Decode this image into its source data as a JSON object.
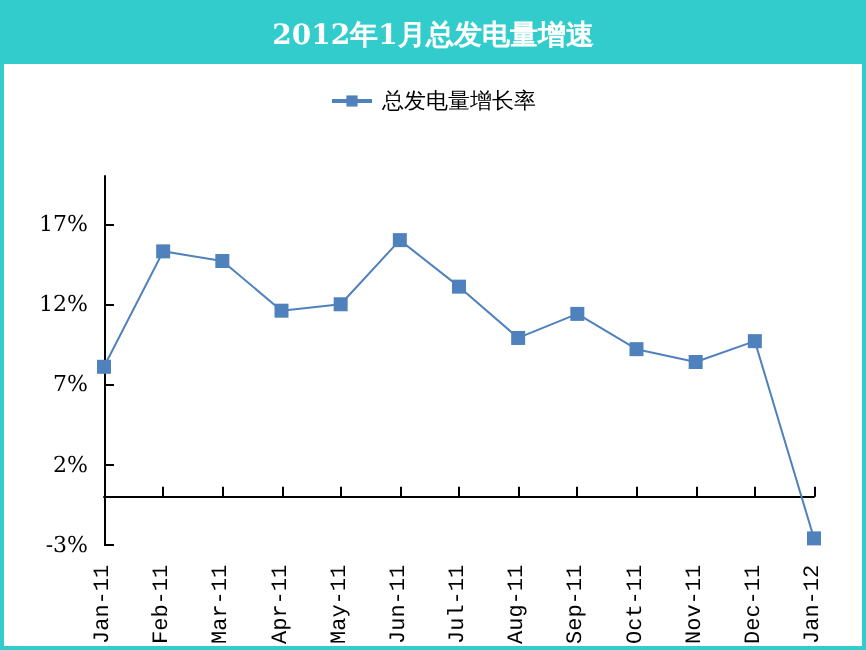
{
  "chart_data": {
    "type": "line",
    "title": "2012年1月总发电量增速",
    "categories": [
      "Jan-11",
      "Feb-11",
      "Mar-11",
      "Apr-11",
      "May-11",
      "Jun-11",
      "Jul-11",
      "Aug-11",
      "Sep-11",
      "Oct-11",
      "Nov-11",
      "Dec-11",
      "Jan-12"
    ],
    "series": [
      {
        "name": "总发电量增长率",
        "color": "#4f81bd",
        "values": [
          8.1,
          15.3,
          14.7,
          11.6,
          12.0,
          16.0,
          13.1,
          9.9,
          11.4,
          9.2,
          8.4,
          9.7,
          -2.6
        ]
      }
    ],
    "ylim": [
      -3,
      20
    ],
    "yticks": [
      {
        "value": -3,
        "label": "-3%"
      },
      {
        "value": 2,
        "label": "2%"
      },
      {
        "value": 7,
        "label": "7%"
      },
      {
        "value": 12,
        "label": "12%"
      },
      {
        "value": 17,
        "label": "17%"
      }
    ],
    "grid": false,
    "legend": "top",
    "marker": "square",
    "line_style": "solid"
  }
}
